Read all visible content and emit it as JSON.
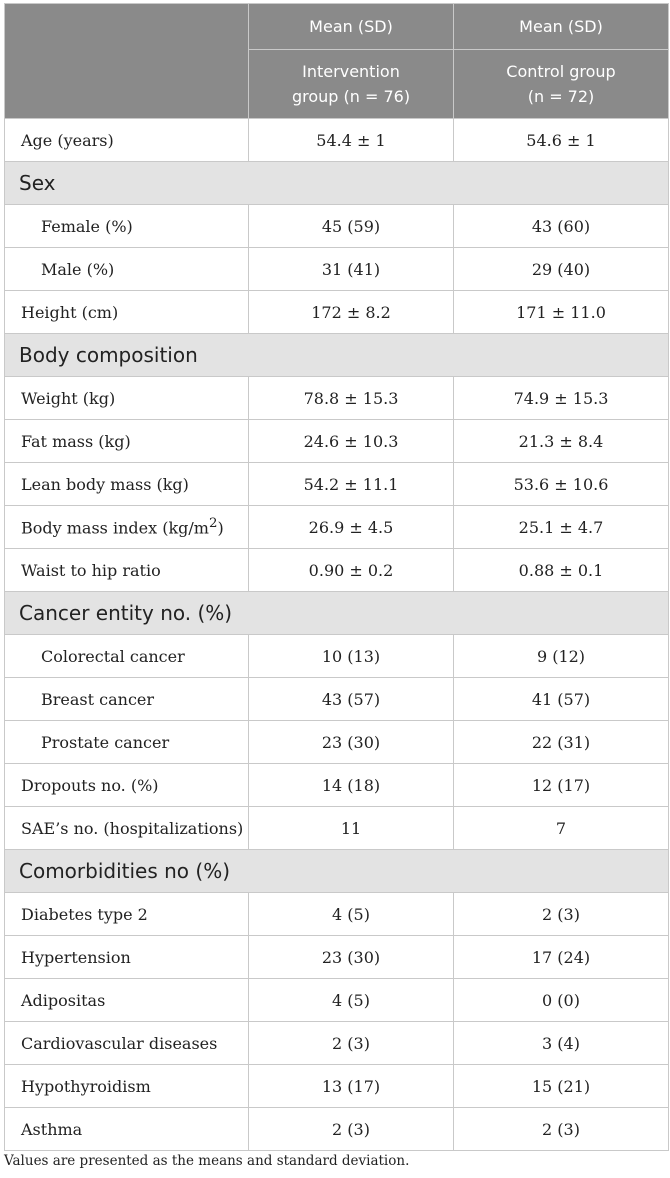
{
  "header": {
    "col1_top": "Mean (SD)",
    "col2_top": "Mean (SD)",
    "col1_sub_line1": "Intervention",
    "col1_sub_line2": "group (n = 76)",
    "col2_sub_line1": "Control group",
    "col2_sub_line2": "(n = 72)"
  },
  "rows": {
    "age": {
      "label": "Age (years)",
      "intervention": "54.4 ± 1",
      "control": "54.6 ± 1"
    },
    "sex": {
      "label": "Sex"
    },
    "female": {
      "label": "Female (%)",
      "intervention": "45 (59)",
      "control": "43 (60)"
    },
    "male": {
      "label": "Male (%)",
      "intervention": "31 (41)",
      "control": "29 (40)"
    },
    "height": {
      "label": "Height (cm)",
      "intervention": "172 ± 8.2",
      "control": "171 ± 11.0"
    },
    "body_comp": {
      "label": "Body composition"
    },
    "weight": {
      "label": "Weight (kg)",
      "intervention": "78.8 ± 15.3",
      "control": "74.9 ± 15.3"
    },
    "fat_mass": {
      "label": "Fat mass (kg)",
      "intervention": "24.6 ± 10.3",
      "control": "21.3 ± 8.4"
    },
    "lean_mass": {
      "label": "Lean body mass (kg)",
      "intervention": "54.2 ± 11.1",
      "control": "53.6 ± 10.6"
    },
    "bmi": {
      "label_prefix": "Body mass index (kg/m",
      "label_sup": "2",
      "label_suffix": ")",
      "intervention": "26.9 ± 4.5",
      "control": "25.1 ± 4.7"
    },
    "whr": {
      "label": "Waist to hip ratio",
      "intervention": "0.90 ± 0.2",
      "control": "0.88 ± 0.1"
    },
    "cancer": {
      "label": "Cancer entity no. (%)"
    },
    "colorectal": {
      "label": "Colorectal cancer",
      "intervention": "10 (13)",
      "control": "9 (12)"
    },
    "breast": {
      "label": "Breast cancer",
      "intervention": "43 (57)",
      "control": "41 (57)"
    },
    "prostate": {
      "label": "Prostate cancer",
      "intervention": "23 (30)",
      "control": "22 (31)"
    },
    "dropouts": {
      "label": "Dropouts no. (%)",
      "intervention": "14 (18)",
      "control": "12 (17)"
    },
    "sae": {
      "label": "SAE’s no. (hospitalizations)",
      "intervention": "11",
      "control": "7"
    },
    "comorb": {
      "label": "Comorbidities no (%)"
    },
    "diabetes": {
      "label": "Diabetes type 2",
      "intervention": "4 (5)",
      "control": "2 (3)"
    },
    "hypertension": {
      "label": "Hypertension",
      "intervention": "23 (30)",
      "control": "17 (24)"
    },
    "adipositas": {
      "label": "Adipositas",
      "intervention": "4 (5)",
      "control": "0 (0)"
    },
    "cardio": {
      "label": "Cardiovascular diseases",
      "intervention": "2 (3)",
      "control": "3 (4)"
    },
    "hypothyroidism": {
      "label": "Hypothyroidism",
      "intervention": "13 (17)",
      "control": "15 (21)"
    },
    "asthma": {
      "label": "Asthma",
      "intervention": "2 (3)",
      "control": "2 (3)"
    }
  },
  "footnote": "Values are presented as the means and standard deviation."
}
